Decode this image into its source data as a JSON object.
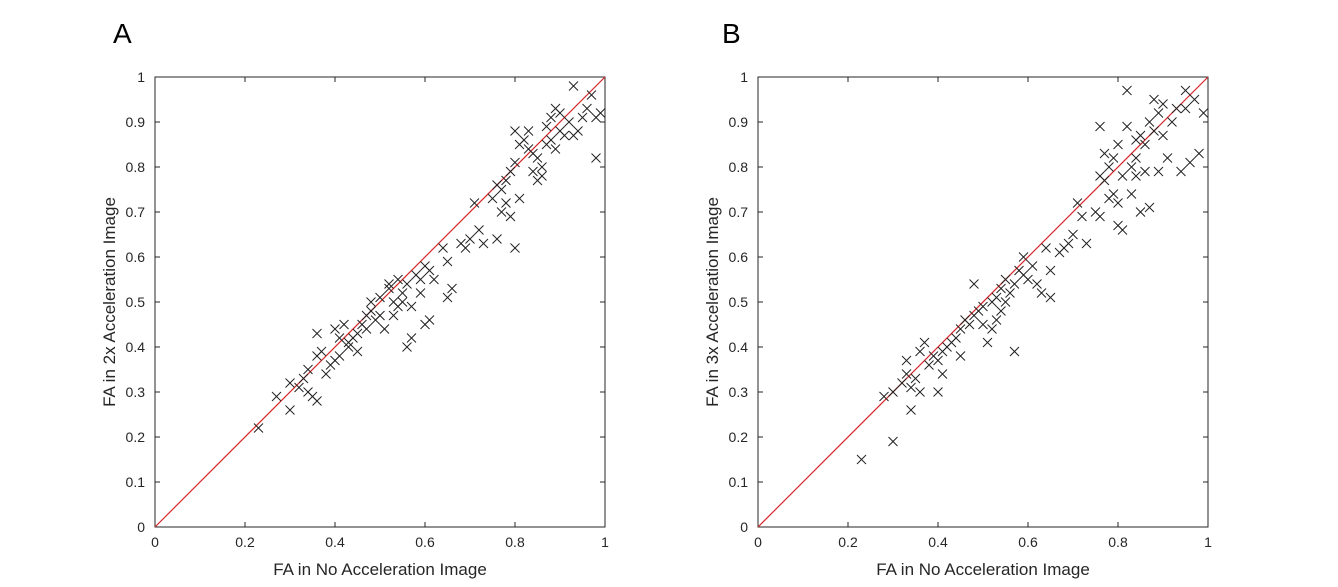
{
  "chart_data": [
    {
      "panel_label": "A",
      "type": "scatter",
      "title": "",
      "xlabel": "FA in No Acceleration Image",
      "ylabel": "FA in 2x Acceleration Image",
      "xlim": [
        0,
        1
      ],
      "ylim": [
        0,
        1
      ],
      "xticks": [
        "0",
        "0.2",
        "0.4",
        "0.6",
        "0.8",
        "1"
      ],
      "yticks": [
        "0",
        "0.1",
        "0.2",
        "0.3",
        "0.4",
        "0.5",
        "0.6",
        "0.7",
        "0.8",
        "0.9",
        "1"
      ],
      "grid": false,
      "marker": "x",
      "identity_line": {
        "from": [
          0,
          0
        ],
        "to": [
          1,
          1
        ],
        "color": "#d62728"
      },
      "points": [
        [
          0.23,
          0.22
        ],
        [
          0.27,
          0.29
        ],
        [
          0.3,
          0.26
        ],
        [
          0.3,
          0.32
        ],
        [
          0.32,
          0.31
        ],
        [
          0.33,
          0.33
        ],
        [
          0.34,
          0.35
        ],
        [
          0.34,
          0.3
        ],
        [
          0.35,
          0.29
        ],
        [
          0.36,
          0.28
        ],
        [
          0.36,
          0.38
        ],
        [
          0.36,
          0.43
        ],
        [
          0.37,
          0.39
        ],
        [
          0.38,
          0.34
        ],
        [
          0.39,
          0.36
        ],
        [
          0.4,
          0.37
        ],
        [
          0.4,
          0.44
        ],
        [
          0.41,
          0.38
        ],
        [
          0.41,
          0.42
        ],
        [
          0.42,
          0.45
        ],
        [
          0.43,
          0.4
        ],
        [
          0.43,
          0.41
        ],
        [
          0.44,
          0.42
        ],
        [
          0.45,
          0.43
        ],
        [
          0.45,
          0.39
        ],
        [
          0.46,
          0.45
        ],
        [
          0.47,
          0.44
        ],
        [
          0.47,
          0.47
        ],
        [
          0.48,
          0.48
        ],
        [
          0.48,
          0.5
        ],
        [
          0.49,
          0.46
        ],
        [
          0.5,
          0.47
        ],
        [
          0.5,
          0.51
        ],
        [
          0.51,
          0.44
        ],
        [
          0.52,
          0.53
        ],
        [
          0.52,
          0.54
        ],
        [
          0.53,
          0.5
        ],
        [
          0.53,
          0.47
        ],
        [
          0.54,
          0.49
        ],
        [
          0.54,
          0.55
        ],
        [
          0.55,
          0.52
        ],
        [
          0.55,
          0.5
        ],
        [
          0.56,
          0.54
        ],
        [
          0.56,
          0.4
        ],
        [
          0.57,
          0.42
        ],
        [
          0.57,
          0.49
        ],
        [
          0.58,
          0.56
        ],
        [
          0.59,
          0.55
        ],
        [
          0.59,
          0.52
        ],
        [
          0.6,
          0.58
        ],
        [
          0.6,
          0.45
        ],
        [
          0.61,
          0.46
        ],
        [
          0.61,
          0.57
        ],
        [
          0.62,
          0.55
        ],
        [
          0.64,
          0.62
        ],
        [
          0.65,
          0.59
        ],
        [
          0.65,
          0.51
        ],
        [
          0.66,
          0.53
        ],
        [
          0.68,
          0.63
        ],
        [
          0.69,
          0.62
        ],
        [
          0.7,
          0.64
        ],
        [
          0.71,
          0.72
        ],
        [
          0.72,
          0.66
        ],
        [
          0.73,
          0.63
        ],
        [
          0.75,
          0.73
        ],
        [
          0.76,
          0.64
        ],
        [
          0.77,
          0.7
        ],
        [
          0.78,
          0.77
        ],
        [
          0.79,
          0.69
        ],
        [
          0.79,
          0.79
        ],
        [
          0.8,
          0.62
        ],
        [
          0.8,
          0.81
        ],
        [
          0.8,
          0.88
        ],
        [
          0.81,
          0.73
        ],
        [
          0.81,
          0.85
        ],
        [
          0.82,
          0.86
        ],
        [
          0.83,
          0.84
        ],
        [
          0.84,
          0.79
        ],
        [
          0.84,
          0.83
        ],
        [
          0.85,
          0.77
        ],
        [
          0.85,
          0.82
        ],
        [
          0.86,
          0.78
        ],
        [
          0.86,
          0.8
        ],
        [
          0.87,
          0.85
        ],
        [
          0.87,
          0.89
        ],
        [
          0.88,
          0.91
        ],
        [
          0.88,
          0.86
        ],
        [
          0.89,
          0.93
        ],
        [
          0.89,
          0.84
        ],
        [
          0.9,
          0.92
        ],
        [
          0.9,
          0.88
        ],
        [
          0.91,
          0.87
        ],
        [
          0.92,
          0.9
        ],
        [
          0.93,
          0.87
        ],
        [
          0.93,
          0.98
        ],
        [
          0.94,
          0.88
        ],
        [
          0.95,
          0.91
        ],
        [
          0.96,
          0.93
        ],
        [
          0.97,
          0.96
        ],
        [
          0.98,
          0.82
        ],
        [
          0.98,
          0.91
        ],
        [
          0.99,
          0.92
        ],
        [
          0.77,
          0.75
        ],
        [
          0.76,
          0.76
        ],
        [
          0.83,
          0.88
        ],
        [
          0.78,
          0.72
        ]
      ]
    },
    {
      "panel_label": "B",
      "type": "scatter",
      "title": "",
      "xlabel": "FA in No Acceleration Image",
      "ylabel": "FA in 3x Acceleration Image",
      "xlim": [
        0,
        1
      ],
      "ylim": [
        0,
        1
      ],
      "xticks": [
        "0",
        "0.2",
        "0.4",
        "0.6",
        "0.8",
        "1"
      ],
      "yticks": [
        "0",
        "0.1",
        "0.2",
        "0.3",
        "0.4",
        "0.5",
        "0.6",
        "0.7",
        "0.8",
        "0.9",
        "1"
      ],
      "grid": false,
      "marker": "x",
      "identity_line": {
        "from": [
          0,
          0
        ],
        "to": [
          1,
          1
        ],
        "color": "#d62728"
      },
      "points": [
        [
          0.23,
          0.15
        ],
        [
          0.28,
          0.29
        ],
        [
          0.3,
          0.19
        ],
        [
          0.3,
          0.3
        ],
        [
          0.32,
          0.32
        ],
        [
          0.33,
          0.34
        ],
        [
          0.33,
          0.37
        ],
        [
          0.34,
          0.31
        ],
        [
          0.34,
          0.26
        ],
        [
          0.35,
          0.33
        ],
        [
          0.36,
          0.3
        ],
        [
          0.36,
          0.39
        ],
        [
          0.37,
          0.41
        ],
        [
          0.38,
          0.36
        ],
        [
          0.39,
          0.38
        ],
        [
          0.4,
          0.3
        ],
        [
          0.4,
          0.37
        ],
        [
          0.41,
          0.34
        ],
        [
          0.41,
          0.39
        ],
        [
          0.42,
          0.4
        ],
        [
          0.43,
          0.41
        ],
        [
          0.44,
          0.42
        ],
        [
          0.45,
          0.44
        ],
        [
          0.45,
          0.38
        ],
        [
          0.46,
          0.46
        ],
        [
          0.47,
          0.45
        ],
        [
          0.48,
          0.47
        ],
        [
          0.48,
          0.54
        ],
        [
          0.49,
          0.48
        ],
        [
          0.5,
          0.49
        ],
        [
          0.5,
          0.45
        ],
        [
          0.51,
          0.41
        ],
        [
          0.52,
          0.5
        ],
        [
          0.52,
          0.44
        ],
        [
          0.53,
          0.51
        ],
        [
          0.53,
          0.46
        ],
        [
          0.54,
          0.53
        ],
        [
          0.54,
          0.48
        ],
        [
          0.55,
          0.55
        ],
        [
          0.55,
          0.5
        ],
        [
          0.56,
          0.52
        ],
        [
          0.57,
          0.54
        ],
        [
          0.57,
          0.39
        ],
        [
          0.58,
          0.57
        ],
        [
          0.59,
          0.56
        ],
        [
          0.59,
          0.6
        ],
        [
          0.6,
          0.55
        ],
        [
          0.61,
          0.58
        ],
        [
          0.62,
          0.54
        ],
        [
          0.63,
          0.52
        ],
        [
          0.64,
          0.62
        ],
        [
          0.65,
          0.57
        ],
        [
          0.65,
          0.51
        ],
        [
          0.67,
          0.61
        ],
        [
          0.68,
          0.62
        ],
        [
          0.69,
          0.63
        ],
        [
          0.7,
          0.65
        ],
        [
          0.71,
          0.72
        ],
        [
          0.72,
          0.69
        ],
        [
          0.73,
          0.63
        ],
        [
          0.75,
          0.7
        ],
        [
          0.76,
          0.69
        ],
        [
          0.76,
          0.89
        ],
        [
          0.77,
          0.77
        ],
        [
          0.77,
          0.83
        ],
        [
          0.78,
          0.8
        ],
        [
          0.79,
          0.74
        ],
        [
          0.79,
          0.82
        ],
        [
          0.8,
          0.67
        ],
        [
          0.8,
          0.72
        ],
        [
          0.8,
          0.85
        ],
        [
          0.81,
          0.78
        ],
        [
          0.82,
          0.97
        ],
        [
          0.82,
          0.89
        ],
        [
          0.83,
          0.74
        ],
        [
          0.83,
          0.8
        ],
        [
          0.84,
          0.86
        ],
        [
          0.84,
          0.78
        ],
        [
          0.85,
          0.7
        ],
        [
          0.85,
          0.87
        ],
        [
          0.86,
          0.85
        ],
        [
          0.86,
          0.79
        ],
        [
          0.87,
          0.9
        ],
        [
          0.87,
          0.71
        ],
        [
          0.88,
          0.88
        ],
        [
          0.88,
          0.95
        ],
        [
          0.89,
          0.79
        ],
        [
          0.89,
          0.92
        ],
        [
          0.9,
          0.94
        ],
        [
          0.9,
          0.87
        ],
        [
          0.91,
          0.82
        ],
        [
          0.92,
          0.9
        ],
        [
          0.93,
          0.93
        ],
        [
          0.94,
          0.79
        ],
        [
          0.95,
          0.97
        ],
        [
          0.95,
          0.93
        ],
        [
          0.96,
          0.81
        ],
        [
          0.97,
          0.95
        ],
        [
          0.98,
          0.83
        ],
        [
          0.99,
          0.92
        ],
        [
          0.76,
          0.78
        ],
        [
          0.78,
          0.73
        ],
        [
          0.81,
          0.66
        ],
        [
          0.84,
          0.82
        ]
      ]
    }
  ]
}
